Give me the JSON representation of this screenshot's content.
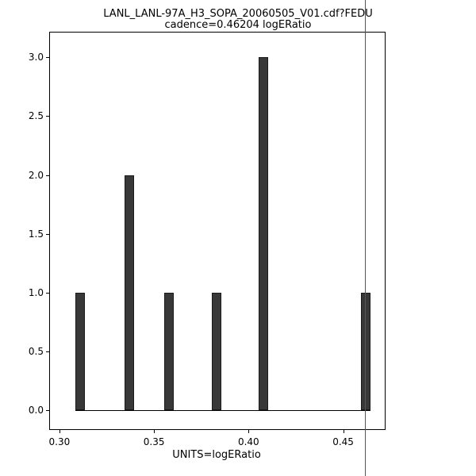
{
  "chart_data": {
    "type": "bar",
    "title": "LANL_LANL-97A_H3_SOPA_20060505_V01.cdf?FEDU",
    "subtitle": "cadence=0.46204 logERatio",
    "xlabel": "UNITS=logERatio",
    "ylabel": "",
    "xlim": [
      0.295,
      0.472
    ],
    "ylim": [
      -0.16,
      3.21
    ],
    "grid": false,
    "legend": "none",
    "x_ticks": [
      {
        "value": 0.3,
        "label": "0.30"
      },
      {
        "value": 0.35,
        "label": "0.35"
      },
      {
        "value": 0.4,
        "label": "0.40"
      },
      {
        "value": 0.45,
        "label": "0.45"
      }
    ],
    "y_ticks": [
      {
        "value": 0.0,
        "label": "0.0"
      },
      {
        "value": 0.5,
        "label": "0.5"
      },
      {
        "value": 1.0,
        "label": "1.0"
      },
      {
        "value": 1.5,
        "label": "1.5"
      },
      {
        "value": 2.0,
        "label": "2.0"
      },
      {
        "value": 2.5,
        "label": "2.5"
      },
      {
        "value": 3.0,
        "label": "3.0"
      }
    ],
    "bars": [
      {
        "x": 0.311,
        "height": 1
      },
      {
        "x": 0.337,
        "height": 2
      },
      {
        "x": 0.358,
        "height": 1
      },
      {
        "x": 0.383,
        "height": 1
      },
      {
        "x": 0.408,
        "height": 3
      },
      {
        "x": 0.462,
        "height": 1
      }
    ],
    "bar_width": 0.005,
    "bar_color": "#383838",
    "bar_edge_color": "#1a1a1a",
    "baseline": {
      "y": 0.0,
      "x_start": 0.3085,
      "x_end": 0.4645
    },
    "cadence_line": {
      "x": 0.46204,
      "color": "#555555",
      "full_height": true
    }
  }
}
